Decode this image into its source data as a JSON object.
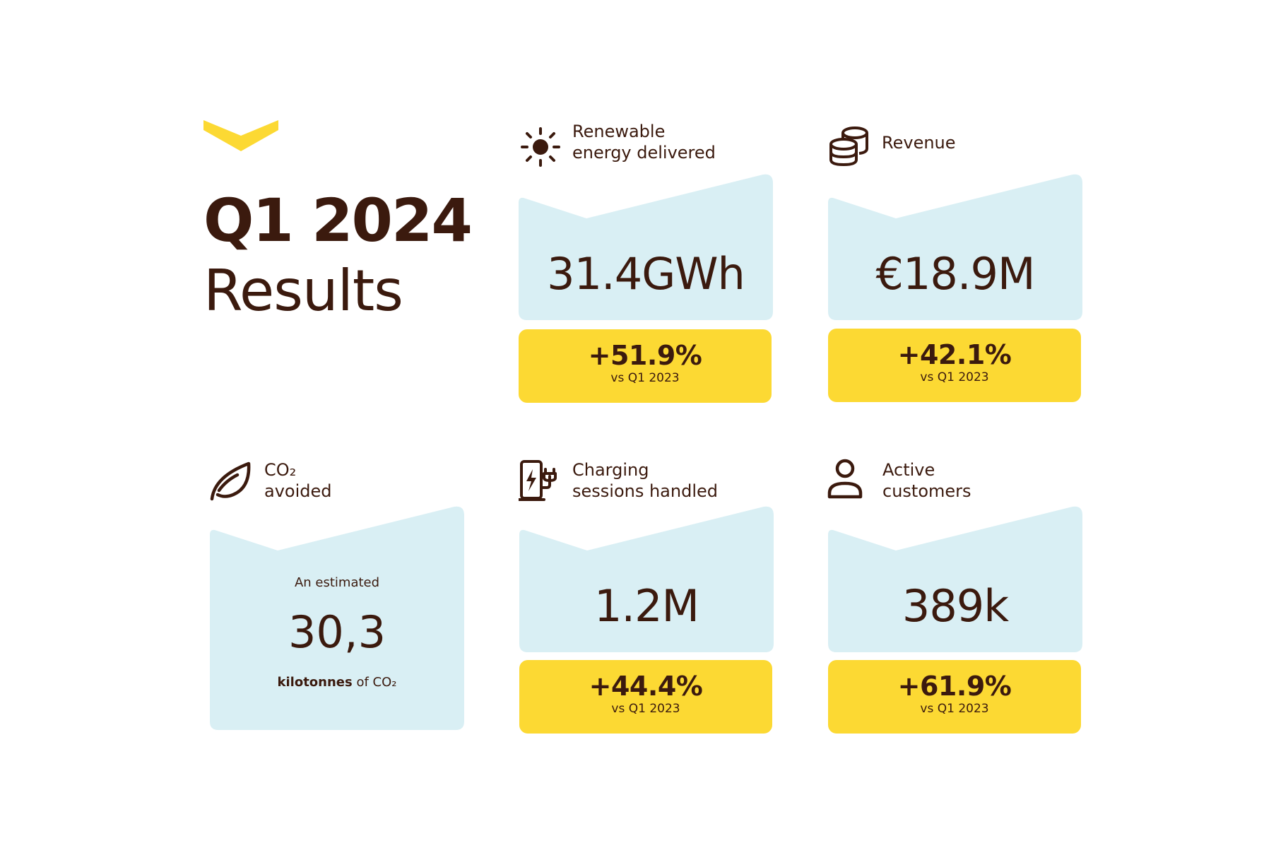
{
  "colors": {
    "text": "#3b1a0e",
    "accent_yellow": "#fcd933",
    "panel_blue": "#d9eff4"
  },
  "header": {
    "title_line1": "Q1 2024",
    "title_line2": "Results",
    "logo_icon": "chevron-logo"
  },
  "metrics": [
    {
      "icon": "sun-icon",
      "label_line1": "Renewable",
      "label_line2": "energy delivered",
      "value": "31.4GWh",
      "change": "+51.9%",
      "comparison": "vs Q1 2023"
    },
    {
      "icon": "coins-icon",
      "label_line1": "Revenue",
      "label_line2": "",
      "value": "€18.9M",
      "change": "+42.1%",
      "comparison": "vs Q1 2023"
    },
    {
      "icon": "ev-charger-icon",
      "label_line1": "Charging",
      "label_line2": "sessions handled",
      "value": "1.2M",
      "change": "+44.4%",
      "comparison": "vs Q1 2023"
    },
    {
      "icon": "user-icon",
      "label_line1": "Active",
      "label_line2": "customers",
      "value": "389k",
      "change": "+61.9%",
      "comparison": "vs Q1 2023"
    }
  ],
  "co2": {
    "icon": "leaf-icon",
    "label_line1": "CO₂",
    "label_line2": "avoided",
    "prefix": "An estimated",
    "value": "30,3",
    "unit_bold": "kilotonnes",
    "unit_rest": " of CO₂"
  }
}
